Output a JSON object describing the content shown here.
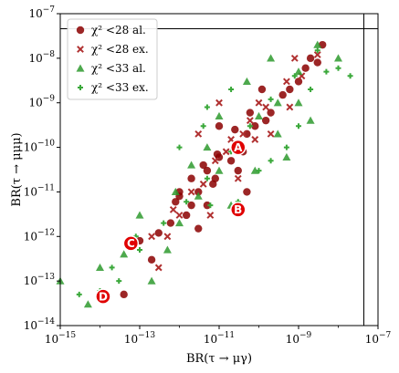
{
  "chart_data": {
    "type": "scatter",
    "title": "",
    "x_scale": "log",
    "y_scale": "log",
    "xlim": [
      1e-15,
      1e-07
    ],
    "ylim": [
      1e-14,
      1e-07
    ],
    "xlabel": "BR(τ → μγ)",
    "ylabel": "BR(τ → μμμ)",
    "x_ticks": [
      {
        "value": 1e-15,
        "base": "10",
        "exp": "−15"
      },
      {
        "value": 1e-13,
        "base": "10",
        "exp": "−13"
      },
      {
        "value": 1e-11,
        "base": "10",
        "exp": "−11"
      },
      {
        "value": 1e-09,
        "base": "10",
        "exp": "−9"
      },
      {
        "value": 1e-07,
        "base": "10",
        "exp": "−7"
      }
    ],
    "y_ticks": [
      {
        "value": 1e-14,
        "base": "10",
        "exp": "−14"
      },
      {
        "value": 1e-13,
        "base": "10",
        "exp": "−13"
      },
      {
        "value": 1e-12,
        "base": "10",
        "exp": "−12"
      },
      {
        "value": 1e-11,
        "base": "10",
        "exp": "−11"
      },
      {
        "value": 1e-10,
        "base": "10",
        "exp": "−10"
      },
      {
        "value": 1e-09,
        "base": "10",
        "exp": "−9"
      },
      {
        "value": 1e-08,
        "base": "10",
        "exp": "−8"
      },
      {
        "value": 1e-07,
        "base": "10",
        "exp": "−7"
      }
    ],
    "limit_lines": {
      "x": 4.4e-08,
      "y": 4.6e-08
    },
    "legend_position": "top-left",
    "series": [
      {
        "name": "χ² <28 al.",
        "marker": "circle",
        "color": "#8b0000",
        "points": [
          [
            3e-13,
            1.2e-12
          ],
          [
            2e-12,
            5e-12
          ],
          [
            5e-12,
            3e-11
          ],
          [
            1e-11,
            6e-11
          ],
          [
            8e-12,
            2e-11
          ],
          [
            3e-11,
            1e-10
          ],
          [
            5e-11,
            2e-10
          ],
          [
            2e-10,
            6e-10
          ],
          [
            4e-10,
            1.5e-09
          ],
          [
            1e-09,
            3e-09
          ],
          [
            2e-09,
            1e-08
          ],
          [
            4e-09,
            2e-08
          ],
          [
            6e-13,
            2e-12
          ],
          [
            1e-12,
            8e-12
          ],
          [
            2e-13,
            3e-13
          ],
          [
            4e-14,
            5e-14
          ],
          [
            1e-13,
            8e-13
          ],
          [
            3e-12,
            1e-11
          ],
          [
            7e-12,
            1.5e-11
          ],
          [
            2e-11,
            5e-11
          ],
          [
            4e-11,
            8e-11
          ],
          [
            8e-11,
            3e-10
          ],
          [
            1.5e-10,
            4e-10
          ],
          [
            6e-10,
            2e-09
          ],
          [
            1.5e-09,
            6e-09
          ],
          [
            3e-09,
            8e-09
          ],
          [
            5e-12,
            5e-12
          ],
          [
            2e-12,
            2e-11
          ],
          [
            1e-11,
            3e-10
          ],
          [
            5e-11,
            1e-11
          ],
          [
            3e-12,
            1.5e-12
          ],
          [
            1.5e-12,
            3e-12
          ],
          [
            8e-13,
            6e-12
          ],
          [
            2.5e-11,
            2.5e-10
          ],
          [
            6e-11,
            6e-10
          ],
          [
            1.2e-10,
            2e-09
          ],
          [
            1e-12,
            1e-11
          ],
          [
            4e-12,
            4e-11
          ],
          [
            3e-11,
            3e-11
          ],
          [
            9e-12,
            7e-11
          ]
        ]
      },
      {
        "name": "χ² <28 ex.",
        "marker": "x",
        "color": "#b03030",
        "points": [
          [
            5e-13,
            1e-12
          ],
          [
            2e-12,
            1e-11
          ],
          [
            8e-12,
            5e-11
          ],
          [
            2e-11,
            1.5e-10
          ],
          [
            6e-11,
            4e-10
          ],
          [
            1.5e-10,
            8e-10
          ],
          [
            5e-10,
            3e-09
          ],
          [
            1.2e-09,
            4e-09
          ],
          [
            3e-09,
            1.2e-08
          ],
          [
            1e-12,
            3e-12
          ],
          [
            4e-12,
            1.5e-11
          ],
          [
            1.5e-11,
            8e-11
          ],
          [
            4e-11,
            2e-10
          ],
          [
            1e-10,
            1e-09
          ],
          [
            8e-10,
            1e-08
          ],
          [
            3e-13,
            2e-13
          ],
          [
            2e-13,
            1e-12
          ],
          [
            6e-12,
            3e-12
          ],
          [
            3e-11,
            2e-11
          ],
          [
            8e-11,
            1.5e-10
          ],
          [
            2e-10,
            2e-10
          ],
          [
            6e-10,
            8e-10
          ],
          [
            1e-11,
            1e-09
          ],
          [
            3e-12,
            2e-10
          ],
          [
            7e-13,
            4e-12
          ]
        ]
      },
      {
        "name": "χ² <33 al.",
        "marker": "triangle",
        "color": "#2e9a2e",
        "points": [
          [
            1e-15,
            1e-13
          ],
          [
            5e-15,
            3e-14
          ],
          [
            1e-14,
            2e-13
          ],
          [
            2e-13,
            1e-13
          ],
          [
            5e-13,
            5e-13
          ],
          [
            1e-12,
            2e-12
          ],
          [
            3e-12,
            8e-12
          ],
          [
            1e-11,
            3e-11
          ],
          [
            3e-11,
            1e-10
          ],
          [
            1e-10,
            5e-10
          ],
          [
            3e-10,
            1e-09
          ],
          [
            1e-09,
            5e-09
          ],
          [
            3e-09,
            2e-08
          ],
          [
            1e-08,
            1e-08
          ],
          [
            2e-12,
            4e-11
          ],
          [
            5e-12,
            1e-10
          ],
          [
            1e-11,
            5e-10
          ],
          [
            5e-11,
            3e-09
          ],
          [
            2e-10,
            1e-08
          ],
          [
            2e-11,
            5e-12
          ],
          [
            8e-11,
            3e-11
          ],
          [
            3e-10,
            2e-10
          ],
          [
            1e-09,
            1e-09
          ],
          [
            4e-14,
            4e-13
          ],
          [
            1e-13,
            3e-12
          ],
          [
            8e-13,
            1e-11
          ],
          [
            2e-09,
            4e-10
          ],
          [
            5e-10,
            6e-11
          ]
        ]
      },
      {
        "name": "χ² <33 ex.",
        "marker": "plus",
        "color": "#3aa83a",
        "points": [
          [
            3e-15,
            5e-14
          ],
          [
            1e-14,
            6e-14
          ],
          [
            3e-14,
            1e-13
          ],
          [
            1e-13,
            5e-13
          ],
          [
            4e-13,
            2e-12
          ],
          [
            1.5e-12,
            6e-12
          ],
          [
            5e-12,
            2e-11
          ],
          [
            2e-11,
            8e-11
          ],
          [
            6e-11,
            3e-10
          ],
          [
            2e-10,
            1.2e-09
          ],
          [
            8e-10,
            4e-09
          ],
          [
            3e-09,
            1.5e-08
          ],
          [
            1e-08,
            6e-09
          ],
          [
            2e-08,
            4e-09
          ],
          [
            5e-12,
            8e-10
          ],
          [
            2e-11,
            2e-09
          ],
          [
            1e-12,
            1e-10
          ],
          [
            4e-12,
            3e-10
          ],
          [
            1e-10,
            3e-11
          ],
          [
            5e-10,
            1e-10
          ],
          [
            2e-09,
            2e-09
          ],
          [
            8e-14,
            1e-12
          ],
          [
            2e-14,
            2e-13
          ],
          [
            6e-12,
            5e-12
          ],
          [
            2e-10,
            5e-11
          ],
          [
            3e-11,
            6e-12
          ],
          [
            1e-09,
            3e-10
          ],
          [
            5e-09,
            5e-09
          ]
        ]
      }
    ],
    "benchmarks": [
      {
        "label": "A",
        "x": 3e-11,
        "y": 1e-10
      },
      {
        "label": "B",
        "x": 3e-11,
        "y": 4e-12
      },
      {
        "label": "C",
        "x": 6e-14,
        "y": 7e-13
      },
      {
        "label": "D",
        "x": 1.2e-14,
        "y": 4.5e-14
      }
    ]
  }
}
